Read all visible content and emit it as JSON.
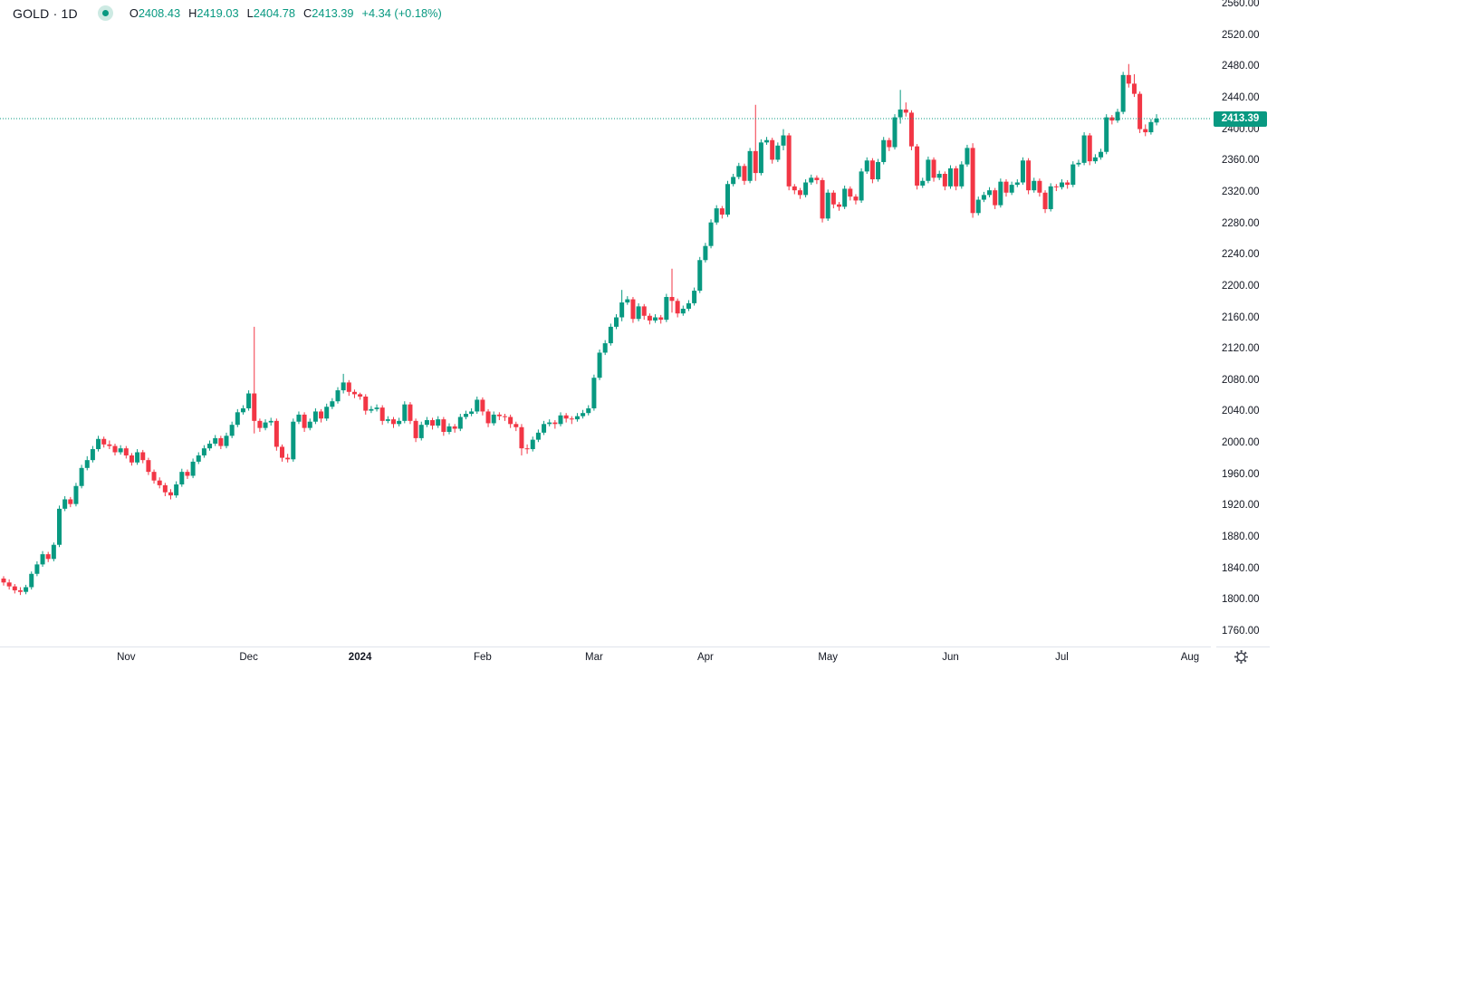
{
  "header": {
    "symbol": "GOLD",
    "separator": "·",
    "interval": "1D",
    "ohlc": [
      {
        "label": "O",
        "value": "2408.43"
      },
      {
        "label": "H",
        "value": "2419.03"
      },
      {
        "label": "L",
        "value": "2404.78"
      },
      {
        "label": "C",
        "value": "2413.39"
      }
    ],
    "change": "+4.34 (+0.18%)"
  },
  "colors": {
    "up": "#089981",
    "down": "#F23645",
    "text": "#131722",
    "axis_line": "#e0e3eb",
    "badge_bg": "#089981",
    "badge_text": "#ffffff",
    "legend_dot_bg": "#cdeae3"
  },
  "chart_data": {
    "type": "candlestick",
    "title": "GOLD 1D candlestick chart",
    "timeframe": "1D",
    "grid": "off",
    "legend_position": "top-left",
    "y_axis": {
      "min": 1760,
      "max": 2560,
      "step": 40,
      "tick_labels": [
        "2560.00",
        "2520.00",
        "2480.00",
        "2440.00",
        "2400.00",
        "2360.00",
        "2320.00",
        "2280.00",
        "2240.00",
        "2200.00",
        "2160.00",
        "2120.00",
        "2080.00",
        "2040.00",
        "2000.00",
        "1960.00",
        "1920.00",
        "1880.00",
        "1840.00",
        "1800.00",
        "1760.00"
      ]
    },
    "x_ticks": [
      {
        "label": "Nov",
        "i": 22
      },
      {
        "label": "Dec",
        "i": 44
      },
      {
        "label": "2024",
        "i": 64,
        "bold": true
      },
      {
        "label": "Feb",
        "i": 86
      },
      {
        "label": "Mar",
        "i": 106
      },
      {
        "label": "Apr",
        "i": 126
      },
      {
        "label": "May",
        "i": 148
      },
      {
        "label": "Jun",
        "i": 170
      },
      {
        "label": "Jul",
        "i": 190
      },
      {
        "label": "Aug",
        "i": 213
      }
    ],
    "price_line": {
      "value": 2413.39,
      "label": "2413.39"
    },
    "last_bar": {
      "open": 2408.43,
      "high": 2419.03,
      "low": 2404.78,
      "close": 2413.39,
      "change": "+4.34",
      "change_pct": "+0.18%"
    },
    "candles": [
      [
        1827,
        1830,
        1818,
        1822
      ],
      [
        1822,
        1826,
        1813,
        1817
      ],
      [
        1817,
        1820,
        1808,
        1812
      ],
      [
        1812,
        1816,
        1806,
        1810
      ],
      [
        1810,
        1819,
        1807,
        1816
      ],
      [
        1816,
        1836,
        1813,
        1833
      ],
      [
        1833,
        1849,
        1830,
        1845
      ],
      [
        1845,
        1862,
        1842,
        1858
      ],
      [
        1858,
        1861,
        1848,
        1852
      ],
      [
        1852,
        1873,
        1849,
        1870
      ],
      [
        1870,
        1920,
        1867,
        1916
      ],
      [
        1916,
        1932,
        1913,
        1928
      ],
      [
        1928,
        1931,
        1918,
        1922
      ],
      [
        1922,
        1949,
        1919,
        1945
      ],
      [
        1945,
        1972,
        1942,
        1968
      ],
      [
        1968,
        1983,
        1965,
        1978
      ],
      [
        1978,
        1996,
        1975,
        1992
      ],
      [
        1992,
        2009,
        1989,
        2005
      ],
      [
        2005,
        2008,
        1994,
        1998
      ],
      [
        1998,
        2003,
        1992,
        1996
      ],
      [
        1996,
        1999,
        1984,
        1988
      ],
      [
        1988,
        1997,
        1985,
        1993
      ],
      [
        1993,
        1996,
        1980,
        1984
      ],
      [
        1984,
        1987,
        1971,
        1975
      ],
      [
        1975,
        1992,
        1972,
        1988
      ],
      [
        1988,
        1991,
        1974,
        1978
      ],
      [
        1978,
        1981,
        1959,
        1963
      ],
      [
        1963,
        1966,
        1948,
        1952
      ],
      [
        1952,
        1956,
        1942,
        1946
      ],
      [
        1946,
        1949,
        1932,
        1937
      ],
      [
        1937,
        1941,
        1928,
        1933
      ],
      [
        1933,
        1951,
        1930,
        1947
      ],
      [
        1947,
        1967,
        1944,
        1963
      ],
      [
        1963,
        1966,
        1954,
        1958
      ],
      [
        1958,
        1980,
        1955,
        1976
      ],
      [
        1976,
        1988,
        1973,
        1984
      ],
      [
        1984,
        1997,
        1981,
        1993
      ],
      [
        1993,
        2003,
        1990,
        1999
      ],
      [
        1999,
        2010,
        1996,
        2006
      ],
      [
        2006,
        2009,
        1992,
        1996
      ],
      [
        1996,
        2013,
        1993,
        2009
      ],
      [
        2009,
        2027,
        2006,
        2023
      ],
      [
        2023,
        2043,
        2020,
        2039
      ],
      [
        2039,
        2048,
        2036,
        2044
      ],
      [
        2044,
        2067,
        2041,
        2063
      ],
      [
        2063,
        2148,
        2012,
        2028
      ],
      [
        2028,
        2031,
        2014,
        2019
      ],
      [
        2019,
        2030,
        2016,
        2026
      ],
      [
        2026,
        2032,
        2022,
        2028
      ],
      [
        2028,
        2031,
        1990,
        1995
      ],
      [
        1995,
        1998,
        1976,
        1981
      ],
      [
        1981,
        1986,
        1975,
        1979
      ],
      [
        1979,
        2031,
        1976,
        2027
      ],
      [
        2027,
        2040,
        2024,
        2036
      ],
      [
        2036,
        2039,
        2014,
        2019
      ],
      [
        2019,
        2031,
        2016,
        2027
      ],
      [
        2027,
        2044,
        2024,
        2040
      ],
      [
        2040,
        2043,
        2026,
        2031
      ],
      [
        2031,
        2050,
        2028,
        2046
      ],
      [
        2046,
        2057,
        2043,
        2053
      ],
      [
        2053,
        2071,
        2050,
        2067
      ],
      [
        2067,
        2088,
        2063,
        2077
      ],
      [
        2077,
        2080,
        2060,
        2065
      ],
      [
        2065,
        2068,
        2057,
        2062
      ],
      [
        2062,
        2064,
        2055,
        2059
      ],
      [
        2059,
        2062,
        2036,
        2041
      ],
      [
        2041,
        2047,
        2038,
        2043
      ],
      [
        2043,
        2049,
        2040,
        2045
      ],
      [
        2045,
        2048,
        2023,
        2028
      ],
      [
        2028,
        2034,
        2025,
        2030
      ],
      [
        2030,
        2033,
        2019,
        2024
      ],
      [
        2024,
        2032,
        2021,
        2028
      ],
      [
        2028,
        2053,
        2025,
        2049
      ],
      [
        2049,
        2052,
        2024,
        2028
      ],
      [
        2028,
        2031,
        2001,
        2006
      ],
      [
        2006,
        2027,
        2003,
        2023
      ],
      [
        2023,
        2033,
        2020,
        2029
      ],
      [
        2029,
        2032,
        2017,
        2022
      ],
      [
        2022,
        2034,
        2019,
        2030
      ],
      [
        2030,
        2033,
        2009,
        2014
      ],
      [
        2014,
        2025,
        2011,
        2021
      ],
      [
        2021,
        2024,
        2013,
        2018
      ],
      [
        2018,
        2037,
        2015,
        2033
      ],
      [
        2033,
        2041,
        2030,
        2037
      ],
      [
        2037,
        2044,
        2034,
        2040
      ],
      [
        2040,
        2059,
        2037,
        2055
      ],
      [
        2055,
        2058,
        2035,
        2040
      ],
      [
        2040,
        2043,
        2020,
        2025
      ],
      [
        2025,
        2040,
        2022,
        2036
      ],
      [
        2036,
        2039,
        2029,
        2034
      ],
      [
        2034,
        2037,
        2028,
        2033
      ],
      [
        2033,
        2036,
        2019,
        2024
      ],
      [
        2024,
        2027,
        2015,
        2020
      ],
      [
        2020,
        2024,
        1984,
        1993
      ],
      [
        1993,
        1998,
        1986,
        1992
      ],
      [
        1992,
        2008,
        1989,
        2004
      ],
      [
        2004,
        2017,
        2001,
        2013
      ],
      [
        2013,
        2028,
        2010,
        2024
      ],
      [
        2024,
        2030,
        2021,
        2026
      ],
      [
        2026,
        2029,
        2018,
        2024
      ],
      [
        2024,
        2039,
        2021,
        2035
      ],
      [
        2035,
        2038,
        2026,
        2031
      ],
      [
        2031,
        2034,
        2024,
        2030
      ],
      [
        2030,
        2038,
        2027,
        2034
      ],
      [
        2034,
        2042,
        2031,
        2038
      ],
      [
        2038,
        2048,
        2035,
        2044
      ],
      [
        2044,
        2087,
        2041,
        2083
      ],
      [
        2083,
        2119,
        2080,
        2115
      ],
      [
        2115,
        2131,
        2112,
        2127
      ],
      [
        2127,
        2152,
        2124,
        2148
      ],
      [
        2148,
        2164,
        2145,
        2160
      ],
      [
        2160,
        2195,
        2155,
        2179
      ],
      [
        2179,
        2187,
        2176,
        2183
      ],
      [
        2183,
        2186,
        2153,
        2158
      ],
      [
        2158,
        2178,
        2155,
        2174
      ],
      [
        2174,
        2177,
        2157,
        2162
      ],
      [
        2162,
        2165,
        2151,
        2156
      ],
      [
        2156,
        2164,
        2153,
        2160
      ],
      [
        2160,
        2163,
        2152,
        2157
      ],
      [
        2157,
        2190,
        2154,
        2186
      ],
      [
        2186,
        2222,
        2166,
        2181
      ],
      [
        2181,
        2184,
        2160,
        2165
      ],
      [
        2165,
        2175,
        2162,
        2171
      ],
      [
        2171,
        2182,
        2168,
        2178
      ],
      [
        2178,
        2198,
        2175,
        2194
      ],
      [
        2194,
        2237,
        2191,
        2233
      ],
      [
        2233,
        2255,
        2230,
        2251
      ],
      [
        2251,
        2285,
        2248,
        2281
      ],
      [
        2281,
        2303,
        2278,
        2299
      ],
      [
        2299,
        2302,
        2286,
        2291
      ],
      [
        2291,
        2334,
        2288,
        2330
      ],
      [
        2330,
        2343,
        2327,
        2339
      ],
      [
        2339,
        2357,
        2336,
        2353
      ],
      [
        2353,
        2356,
        2329,
        2334
      ],
      [
        2334,
        2376,
        2331,
        2372
      ],
      [
        2372,
        2431,
        2334,
        2344
      ],
      [
        2344,
        2387,
        2341,
        2383
      ],
      [
        2383,
        2390,
        2380,
        2386
      ],
      [
        2386,
        2389,
        2356,
        2361
      ],
      [
        2361,
        2383,
        2358,
        2379
      ],
      [
        2379,
        2400,
        2373,
        2392
      ],
      [
        2392,
        2395,
        2322,
        2327
      ],
      [
        2327,
        2330,
        2317,
        2322
      ],
      [
        2322,
        2325,
        2311,
        2316
      ],
      [
        2316,
        2336,
        2313,
        2332
      ],
      [
        2332,
        2342,
        2329,
        2338
      ],
      [
        2338,
        2341,
        2330,
        2335
      ],
      [
        2335,
        2338,
        2281,
        2286
      ],
      [
        2286,
        2323,
        2283,
        2319
      ],
      [
        2319,
        2322,
        2299,
        2304
      ],
      [
        2304,
        2307,
        2296,
        2301
      ],
      [
        2301,
        2328,
        2298,
        2324
      ],
      [
        2324,
        2327,
        2309,
        2314
      ],
      [
        2314,
        2317,
        2304,
        2309
      ],
      [
        2309,
        2350,
        2306,
        2346
      ],
      [
        2346,
        2364,
        2343,
        2360
      ],
      [
        2360,
        2363,
        2331,
        2336
      ],
      [
        2336,
        2362,
        2333,
        2358
      ],
      [
        2358,
        2390,
        2355,
        2386
      ],
      [
        2386,
        2389,
        2372,
        2377
      ],
      [
        2377,
        2419,
        2374,
        2415
      ],
      [
        2415,
        2450,
        2407,
        2425
      ],
      [
        2425,
        2434,
        2416,
        2421
      ],
      [
        2421,
        2424,
        2373,
        2378
      ],
      [
        2378,
        2381,
        2323,
        2328
      ],
      [
        2328,
        2338,
        2325,
        2334
      ],
      [
        2334,
        2365,
        2331,
        2361
      ],
      [
        2361,
        2364,
        2333,
        2338
      ],
      [
        2338,
        2347,
        2335,
        2343
      ],
      [
        2343,
        2346,
        2322,
        2327
      ],
      [
        2327,
        2354,
        2324,
        2350
      ],
      [
        2350,
        2353,
        2322,
        2327
      ],
      [
        2327,
        2359,
        2324,
        2355
      ],
      [
        2355,
        2380,
        2352,
        2376
      ],
      [
        2376,
        2382,
        2287,
        2293
      ],
      [
        2293,
        2314,
        2290,
        2310
      ],
      [
        2310,
        2320,
        2307,
        2316
      ],
      [
        2316,
        2326,
        2313,
        2322
      ],
      [
        2322,
        2325,
        2298,
        2303
      ],
      [
        2303,
        2337,
        2300,
        2333
      ],
      [
        2333,
        2336,
        2314,
        2319
      ],
      [
        2319,
        2333,
        2316,
        2329
      ],
      [
        2329,
        2336,
        2326,
        2332
      ],
      [
        2332,
        2364,
        2329,
        2360
      ],
      [
        2360,
        2363,
        2317,
        2322
      ],
      [
        2322,
        2338,
        2319,
        2334
      ],
      [
        2334,
        2337,
        2314,
        2319
      ],
      [
        2319,
        2322,
        2293,
        2298
      ],
      [
        2298,
        2331,
        2295,
        2327
      ],
      [
        2327,
        2330,
        2321,
        2326
      ],
      [
        2326,
        2336,
        2323,
        2332
      ],
      [
        2332,
        2335,
        2324,
        2329
      ],
      [
        2329,
        2359,
        2326,
        2355
      ],
      [
        2355,
        2361,
        2352,
        2357
      ],
      [
        2357,
        2396,
        2354,
        2392
      ],
      [
        2392,
        2395,
        2354,
        2359
      ],
      [
        2359,
        2368,
        2356,
        2364
      ],
      [
        2364,
        2375,
        2361,
        2371
      ],
      [
        2371,
        2419,
        2368,
        2415
      ],
      [
        2415,
        2418,
        2406,
        2411
      ],
      [
        2411,
        2426,
        2408,
        2422
      ],
      [
        2422,
        2473,
        2419,
        2469
      ],
      [
        2469,
        2483,
        2453,
        2458
      ],
      [
        2458,
        2470,
        2441,
        2445
      ],
      [
        2445,
        2448,
        2395,
        2400
      ],
      [
        2400,
        2406,
        2391,
        2396
      ],
      [
        2396,
        2413,
        2393,
        2409
      ],
      [
        2408.43,
        2419.03,
        2404.78,
        2413.39
      ]
    ]
  }
}
